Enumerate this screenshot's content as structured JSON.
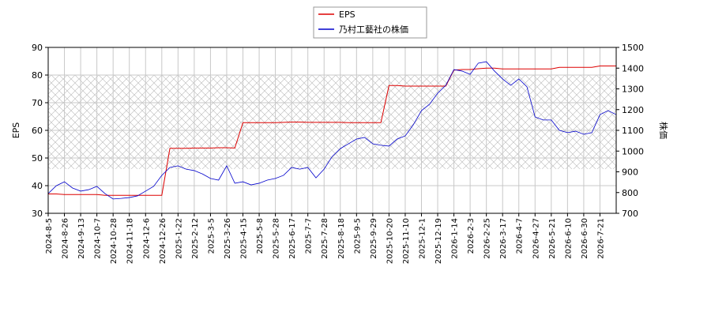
{
  "chart_data": {
    "type": "line",
    "categories": [
      "2024-8-5",
      null,
      "2024-8-26",
      null,
      "2024-9-13",
      null,
      "2024-10-7",
      null,
      "2024-10-28",
      null,
      "2024-11-18",
      null,
      "2024-12-6",
      null,
      "2024-12-26",
      null,
      "2025-1-22",
      null,
      "2025-2-12",
      null,
      "2025-3-5",
      null,
      "2025-3-26",
      null,
      "2025-4-15",
      null,
      "2025-5-8",
      null,
      "2025-5-28",
      null,
      "2025-6-17",
      null,
      "2025-7-7",
      null,
      "2025-7-28",
      null,
      "2025-8-18",
      null,
      "2025-9-5",
      null,
      "2025-9-29",
      null,
      "2025-10-20",
      null,
      "2025-11-10",
      null,
      "2025-12-1",
      null,
      "2025-12-19",
      null,
      "2026-1-14",
      null,
      "2026-2-3",
      null,
      "2026-2-25",
      null,
      "2026-3-17",
      null,
      "2026-4-7",
      null,
      "2026-4-27",
      null,
      "2026-5-21",
      null,
      "2026-6-10",
      null,
      "2026-6-30",
      null,
      "2026-7-21",
      null,
      null
    ],
    "series": [
      {
        "name": "EPS",
        "color": "#dd0000",
        "values": [
          37,
          37,
          36.8,
          36.8,
          36.8,
          36.8,
          36.8,
          36.5,
          36.5,
          36.5,
          36.5,
          36.5,
          36.5,
          36.5,
          36.5,
          53.5,
          53.5,
          53.5,
          53.6,
          53.6,
          53.6,
          53.7,
          53.7,
          53.6,
          62.8,
          62.8,
          62.8,
          62.8,
          62.8,
          62.9,
          63,
          63,
          62.9,
          62.9,
          62.9,
          62.9,
          62.9,
          62.8,
          62.8,
          62.8,
          62.8,
          62.8,
          76.2,
          76.2,
          76,
          76,
          76,
          76,
          76,
          76,
          81.8,
          82,
          82,
          82.3,
          82.5,
          82.5,
          82.2,
          82.2,
          82.2,
          82.2,
          82.2,
          82.2,
          82.2,
          82.8,
          82.8,
          82.8,
          82.8,
          82.8,
          83.3,
          83.3,
          83.3
        ]
      },
      {
        "name": "乃村工藝社の株価",
        "color": "#0000cc",
        "axis": "y2",
        "values": [
          795,
          833,
          852,
          822,
          807,
          814,
          830,
          795,
          769,
          772,
          776,
          784,
          807,
          830,
          883,
          921,
          929,
          913,
          906,
          890,
          868,
          860,
          929,
          845,
          852,
          837,
          845,
          860,
          868,
          883,
          921,
          913,
          921,
          871,
          913,
          974,
          1012,
          1035,
          1058,
          1066,
          1035,
          1028,
          1024,
          1058,
          1073,
          1127,
          1195,
          1226,
          1279,
          1317,
          1393,
          1386,
          1370,
          1424,
          1431,
          1386,
          1348,
          1317,
          1348,
          1310,
          1165,
          1150,
          1150,
          1100,
          1089,
          1096,
          1081,
          1089,
          1176,
          1195,
          1176
        ]
      }
    ],
    "ylabel": "EPS",
    "y2label": "株価",
    "ylim": [
      30,
      90
    ],
    "yticks": [
      30,
      40,
      50,
      60,
      70,
      80,
      90
    ],
    "y2lim": [
      700,
      1500
    ],
    "y2ticks": [
      700,
      800,
      900,
      1000,
      1100,
      1200,
      1300,
      1400,
      1500
    ],
    "grid": true,
    "legend": "upper center"
  }
}
